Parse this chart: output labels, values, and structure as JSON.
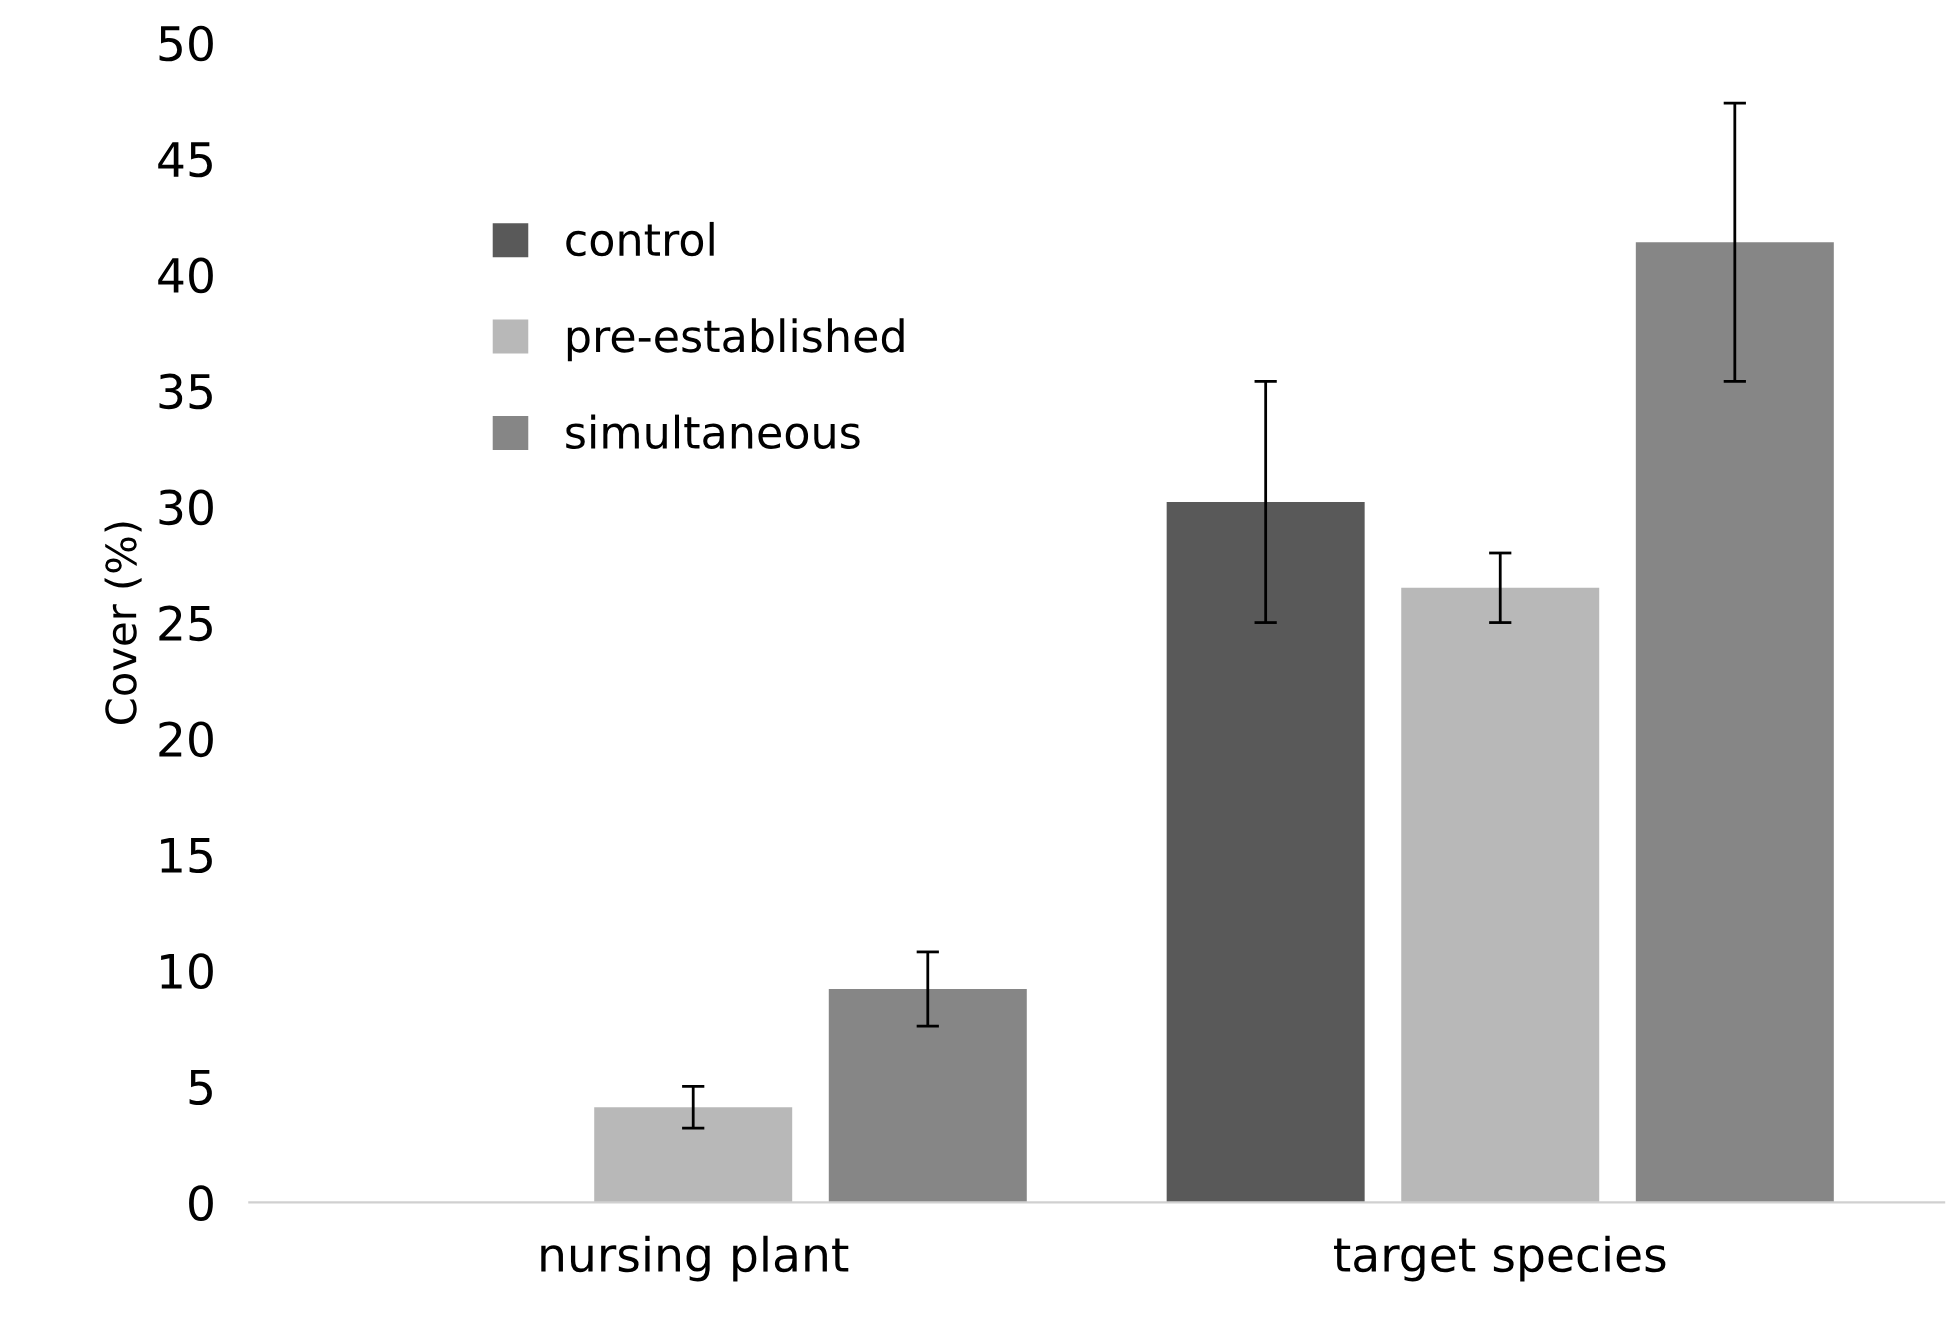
{
  "chart_data": {
    "type": "bar",
    "ylabel": "Cover (%)",
    "categories": [
      "nursing plant",
      "target species"
    ],
    "series": [
      {
        "name": "control",
        "color": "#595959",
        "values": [
          0,
          30.2
        ],
        "errors": [
          null,
          5.2
        ]
      },
      {
        "name": "pre-established",
        "color": "#b8b8b8",
        "values": [
          4.1,
          26.5
        ],
        "errors": [
          0.9,
          1.5
        ]
      },
      {
        "name": "simultaneous",
        "color": "#868686",
        "values": [
          9.2,
          41.4
        ],
        "errors": [
          1.6,
          6.0
        ]
      }
    ],
    "ylim": [
      0,
      50
    ],
    "yticks": [
      0,
      5,
      10,
      15,
      20,
      25,
      30,
      35,
      40,
      45,
      50
    ],
    "grid": false,
    "legend": "top left"
  }
}
